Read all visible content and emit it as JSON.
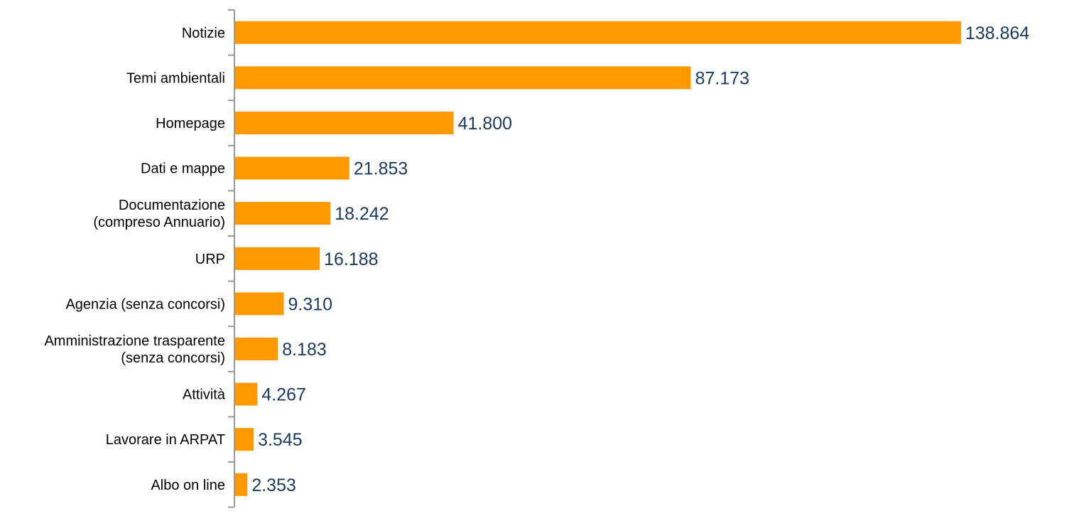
{
  "chart_data": {
    "type": "bar",
    "orientation": "horizontal",
    "categories": [
      [
        "Notizie"
      ],
      [
        "Temi ambientali"
      ],
      [
        "Homepage"
      ],
      [
        "Dati e mappe"
      ],
      [
        "Documentazione",
        "(compreso Annuario)"
      ],
      [
        "URP"
      ],
      [
        "Agenzia (senza concorsi)"
      ],
      [
        "Amministrazione trasparente",
        "(senza concorsi)"
      ],
      [
        "Attività"
      ],
      [
        "Lavorare in ARPAT"
      ],
      [
        "Albo on line"
      ]
    ],
    "values": [
      138864,
      87173,
      41800,
      21853,
      18242,
      16188,
      9310,
      8183,
      4267,
      3545,
      2353
    ],
    "value_labels": [
      "138.864",
      "87.173",
      "41.800",
      "21.853",
      "18.242",
      "16.188",
      "9.310",
      "8.183",
      "4.267",
      "3.545",
      "2.353"
    ],
    "title": "",
    "xlabel": "",
    "ylabel": "",
    "grid": false,
    "legend": "none",
    "colors": {
      "bar": "#ff9900",
      "value_label": "#1c3a5e",
      "axis": "#999999",
      "category_label": "#000000"
    }
  }
}
